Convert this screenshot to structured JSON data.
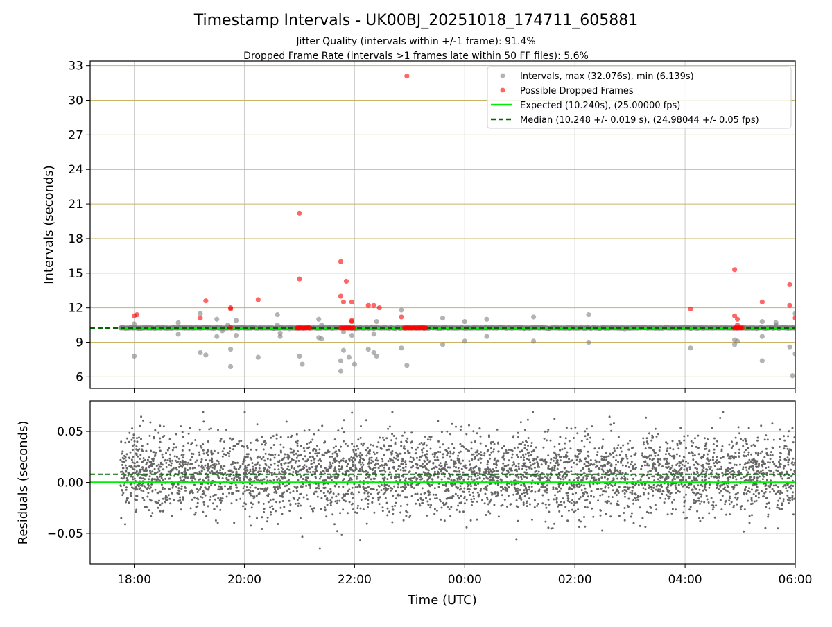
{
  "header": {
    "title": "Timestamp Intervals - UK00BJ_20251018_174711_605881",
    "subtitle_line1": "Jitter Quality (intervals within +/-1 frame): 91.4%",
    "subtitle_line2": "Dropped Frame Rate (intervals >1 frames late within 50 FF files): 5.6%"
  },
  "colors": {
    "interval_points": "#808080",
    "dropped_points": "#ff0000",
    "expected_line": "#00ee00",
    "median_line": "#006400",
    "hgrid_top": "#c8b464",
    "grid": "#cccccc",
    "residual_points": "#666666"
  },
  "chart_data": [
    {
      "id": "intervals",
      "type": "scatter",
      "ylabel": "Intervals (seconds)",
      "xlim_hours": [
        -0.8,
        12.0
      ],
      "ylim": [
        5.0,
        33.4
      ],
      "yticks": [
        6,
        9,
        12,
        15,
        18,
        21,
        24,
        27,
        30,
        33
      ],
      "xticks_hours": [
        0,
        2,
        4,
        6,
        8,
        10,
        12
      ],
      "grid": "vertical gray, horizontal tan",
      "legend_position": "top-right",
      "legend": {
        "intervals": "Intervals, max (32.076s), min (6.139s)",
        "dropped": "Possible Dropped Frames",
        "expected": "Expected (10.240s), (25.00000 fps)",
        "median": "Median (10.248 +/- 0.019 s), (24.98044 +/- 0.05 fps)"
      },
      "expected_value": 10.24,
      "median_value": 10.248,
      "baseline_x_range_hours": [
        -0.25,
        12.0
      ],
      "outliers": [
        {
          "x": 0.0,
          "y": 7.8
        },
        {
          "x": 0.0,
          "y": 10.6
        },
        {
          "x": 0.8,
          "y": 10.7
        },
        {
          "x": 0.8,
          "y": 9.7
        },
        {
          "x": 1.2,
          "y": 8.1
        },
        {
          "x": 1.2,
          "y": 11.5
        },
        {
          "x": 1.3,
          "y": 7.9
        },
        {
          "x": 1.5,
          "y": 9.5
        },
        {
          "x": 1.5,
          "y": 11.0
        },
        {
          "x": 1.6,
          "y": 10.0
        },
        {
          "x": 1.7,
          "y": 10.5
        },
        {
          "x": 1.75,
          "y": 8.4
        },
        {
          "x": 1.75,
          "y": 6.9
        },
        {
          "x": 1.85,
          "y": 9.6
        },
        {
          "x": 1.85,
          "y": 10.9
        },
        {
          "x": 2.25,
          "y": 7.7
        },
        {
          "x": 2.6,
          "y": 10.5
        },
        {
          "x": 2.6,
          "y": 11.4
        },
        {
          "x": 2.65,
          "y": 9.8
        },
        {
          "x": 2.65,
          "y": 9.5
        },
        {
          "x": 3.0,
          "y": 7.8
        },
        {
          "x": 3.05,
          "y": 7.1
        },
        {
          "x": 3.35,
          "y": 11.0
        },
        {
          "x": 3.35,
          "y": 9.4
        },
        {
          "x": 3.4,
          "y": 9.3
        },
        {
          "x": 3.4,
          "y": 10.5
        },
        {
          "x": 3.75,
          "y": 6.5
        },
        {
          "x": 3.75,
          "y": 7.4
        },
        {
          "x": 3.8,
          "y": 8.3
        },
        {
          "x": 3.8,
          "y": 9.9
        },
        {
          "x": 3.9,
          "y": 7.7
        },
        {
          "x": 3.95,
          "y": 9.6
        },
        {
          "x": 4.0,
          "y": 7.1
        },
        {
          "x": 4.25,
          "y": 8.4
        },
        {
          "x": 4.35,
          "y": 8.1
        },
        {
          "x": 4.4,
          "y": 10.8
        },
        {
          "x": 4.4,
          "y": 7.8
        },
        {
          "x": 4.35,
          "y": 9.7
        },
        {
          "x": 4.85,
          "y": 11.8
        },
        {
          "x": 4.85,
          "y": 8.5
        },
        {
          "x": 4.95,
          "y": 7.0
        },
        {
          "x": 5.6,
          "y": 11.1
        },
        {
          "x": 5.6,
          "y": 8.8
        },
        {
          "x": 6.0,
          "y": 10.8
        },
        {
          "x": 6.0,
          "y": 9.1
        },
        {
          "x": 6.4,
          "y": 11.0
        },
        {
          "x": 6.4,
          "y": 9.5
        },
        {
          "x": 7.25,
          "y": 11.2
        },
        {
          "x": 7.25,
          "y": 9.1
        },
        {
          "x": 8.25,
          "y": 11.4
        },
        {
          "x": 8.25,
          "y": 9.0
        },
        {
          "x": 10.1,
          "y": 8.5
        },
        {
          "x": 10.1,
          "y": 10.2
        },
        {
          "x": 10.9,
          "y": 9.2
        },
        {
          "x": 10.9,
          "y": 8.8
        },
        {
          "x": 10.95,
          "y": 9.1
        },
        {
          "x": 11.4,
          "y": 10.8
        },
        {
          "x": 11.4,
          "y": 9.5
        },
        {
          "x": 11.4,
          "y": 7.4
        },
        {
          "x": 11.65,
          "y": 10.7
        },
        {
          "x": 11.65,
          "y": 10.5
        },
        {
          "x": 11.9,
          "y": 8.6
        },
        {
          "x": 11.95,
          "y": 6.1
        },
        {
          "x": 12.0,
          "y": 8.0
        },
        {
          "x": 12.0,
          "y": 11.5
        }
      ],
      "dropped_frames": [
        {
          "x": 0.0,
          "y": 11.3
        },
        {
          "x": 0.05,
          "y": 11.4
        },
        {
          "x": 1.2,
          "y": 11.1
        },
        {
          "x": 1.3,
          "y": 12.6
        },
        {
          "x": 1.75,
          "y": 11.9
        },
        {
          "x": 1.75,
          "y": 12.0
        },
        {
          "x": 1.75,
          "y": 10.3
        },
        {
          "x": 2.25,
          "y": 12.7
        },
        {
          "x": 3.0,
          "y": 20.2
        },
        {
          "x": 3.0,
          "y": 14.5
        },
        {
          "x": 3.75,
          "y": 16.0
        },
        {
          "x": 3.75,
          "y": 13.0
        },
        {
          "x": 3.8,
          "y": 12.5
        },
        {
          "x": 3.85,
          "y": 14.3
        },
        {
          "x": 3.95,
          "y": 12.5
        },
        {
          "x": 3.95,
          "y": 10.8
        },
        {
          "x": 3.95,
          "y": 10.9
        },
        {
          "x": 4.25,
          "y": 12.2
        },
        {
          "x": 4.35,
          "y": 12.2
        },
        {
          "x": 4.45,
          "y": 12.0
        },
        {
          "x": 4.85,
          "y": 11.2
        },
        {
          "x": 4.95,
          "y": 32.1
        },
        {
          "x": 10.1,
          "y": 11.9
        },
        {
          "x": 10.9,
          "y": 15.3
        },
        {
          "x": 10.9,
          "y": 11.3
        },
        {
          "x": 10.95,
          "y": 11.0
        },
        {
          "x": 10.95,
          "y": 10.5
        },
        {
          "x": 11.4,
          "y": 12.5
        },
        {
          "x": 11.9,
          "y": 14.0
        },
        {
          "x": 11.9,
          "y": 12.2
        },
        {
          "x": 12.0,
          "y": 11.1
        }
      ],
      "dropped_clusters_at_baseline": [
        {
          "x_start": 2.95,
          "x_end": 3.2
        },
        {
          "x_start": 3.75,
          "x_end": 4.0
        },
        {
          "x_start": 4.9,
          "x_end": 5.3
        },
        {
          "x_start": 10.9,
          "x_end": 11.05
        }
      ]
    },
    {
      "id": "residuals",
      "type": "scatter",
      "xlabel": "Time (UTC)",
      "ylabel": "Residuals (seconds)",
      "xlim_hours": [
        -0.8,
        12.0
      ],
      "ylim": [
        -0.08,
        0.08
      ],
      "yticks": [
        -0.05,
        0.0,
        0.05
      ],
      "ytick_labels": [
        "−0.05",
        "0.00",
        "0.05"
      ],
      "xticks_hours": [
        0,
        2,
        4,
        6,
        8,
        10,
        12
      ],
      "xtick_labels": [
        "18:00",
        "20:00",
        "22:00",
        "00:00",
        "02:00",
        "04:00",
        "06:00"
      ],
      "grid": true,
      "expected_residual": 0.0,
      "median_residual": 0.008,
      "center": 0.008,
      "spread_sd": 0.019,
      "range_seen": [
        -0.065,
        0.069
      ],
      "x_range_hours": [
        -0.25,
        12.0
      ],
      "approx_points": 4300
    }
  ]
}
